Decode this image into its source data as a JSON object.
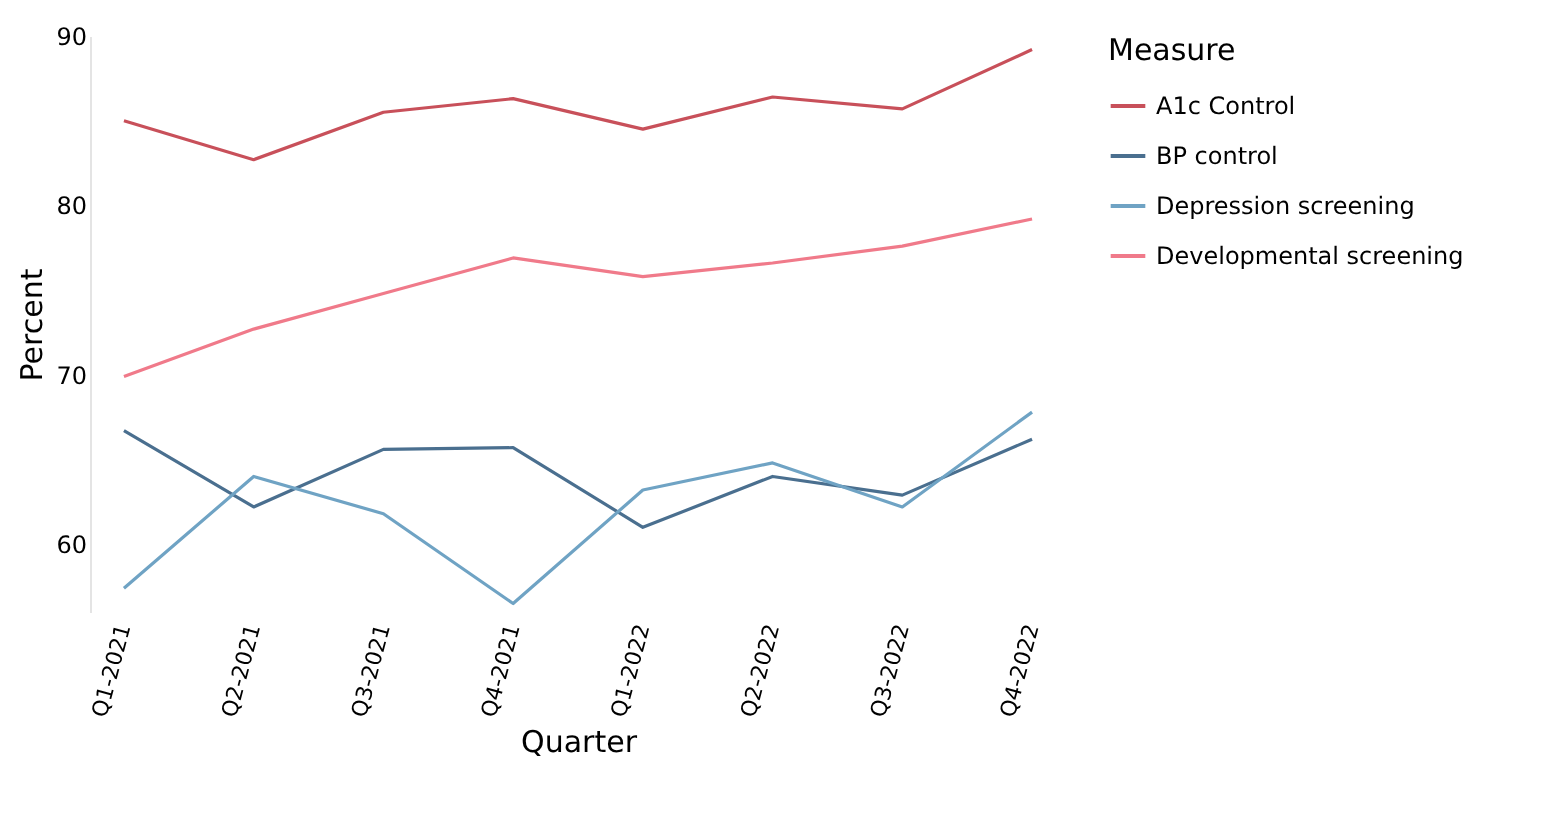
{
  "chart_data": {
    "type": "line",
    "xlabel": "Quarter",
    "ylabel": "Percent",
    "legend_title": "Measure",
    "legend": "right",
    "categories": [
      "Q1-2021",
      "Q2-2021",
      "Q3-2021",
      "Q4-2021",
      "Q1-2022",
      "Q2-2022",
      "Q3-2022",
      "Q4-2022"
    ],
    "ylim": [
      56,
      90
    ],
    "yticks": [
      60,
      70,
      80,
      90
    ],
    "grid": false,
    "marker": "none",
    "line_style": "solid",
    "series": [
      {
        "name": "A1c Control",
        "color": "#c8505a",
        "values": [
          85.0,
          82.7,
          85.5,
          86.3,
          84.5,
          86.4,
          85.7,
          89.2
        ]
      },
      {
        "name": "BP control",
        "color": "#4a6f8f",
        "values": [
          66.7,
          62.2,
          65.6,
          65.7,
          61.0,
          64.0,
          62.9,
          66.2
        ]
      },
      {
        "name": "Depression screening",
        "color": "#6fa3c4",
        "values": [
          57.4,
          64.0,
          61.8,
          56.5,
          63.2,
          64.8,
          62.2,
          67.8
        ]
      },
      {
        "name": "Developmental screening",
        "color": "#f07a8a",
        "values": [
          69.9,
          72.7,
          74.8,
          76.9,
          75.8,
          76.6,
          77.6,
          79.2
        ]
      }
    ]
  }
}
